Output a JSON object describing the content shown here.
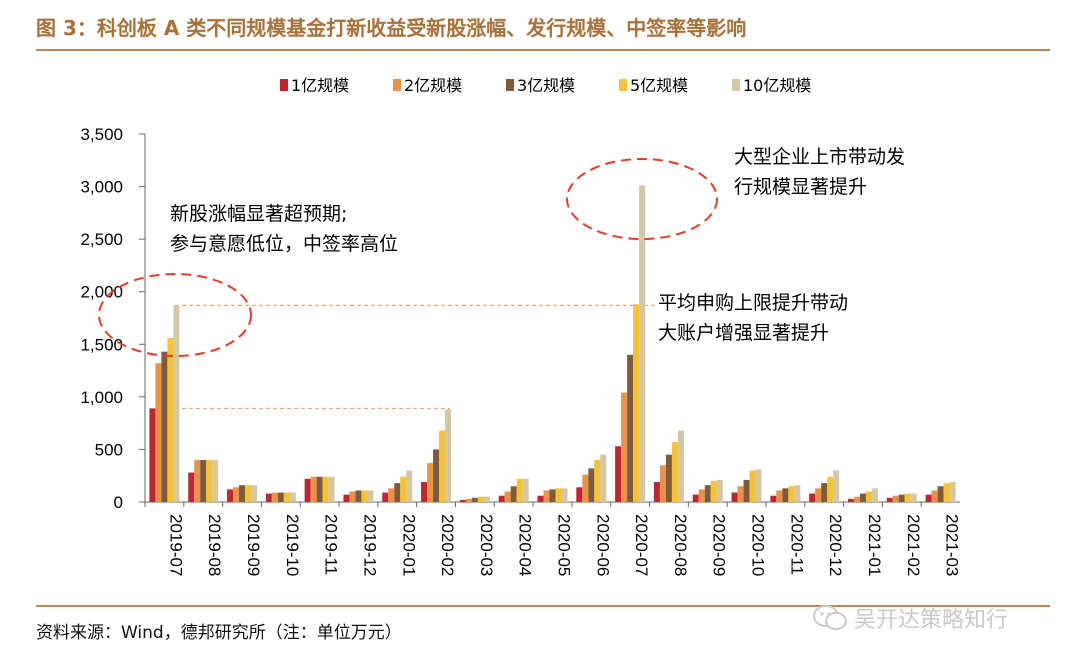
{
  "figure": {
    "title": "图 3：科创板 A 类不同规模基金打新收益受新股涨幅、发行规模、中签率等影响",
    "source": "资料来源：Wind，德邦研究所（注：单位万元）",
    "watermark": "吴开达策略知行",
    "watermark_icon": "wechat-icon"
  },
  "colors": {
    "title": "#a87137",
    "rule": "#b3875a",
    "axis": "#666666",
    "ellipse": "#e23c2c",
    "guide": "#e89a5a"
  },
  "chart_data": {
    "type": "bar",
    "categories": [
      "2019-07",
      "2019-08",
      "2019-09",
      "2019-10",
      "2019-11",
      "2019-12",
      "2020-01",
      "2020-02",
      "2020-03",
      "2020-04",
      "2020-05",
      "2020-06",
      "2020-07",
      "2020-08",
      "2020-09",
      "2020-10",
      "2020-11",
      "2020-12",
      "2021-01",
      "2021-02",
      "2021-03"
    ],
    "series": [
      {
        "name": "1亿规模",
        "color": "#c0262d",
        "values": [
          890,
          280,
          120,
          80,
          220,
          70,
          90,
          190,
          20,
          60,
          60,
          140,
          530,
          190,
          70,
          90,
          60,
          80,
          30,
          40,
          70
        ]
      },
      {
        "name": "2亿规模",
        "color": "#e8924a",
        "values": [
          1320,
          400,
          140,
          90,
          240,
          100,
          130,
          370,
          30,
          100,
          110,
          260,
          1040,
          350,
          120,
          150,
          110,
          130,
          50,
          60,
          110
        ]
      },
      {
        "name": "3亿规模",
        "color": "#7d5c3c",
        "values": [
          1430,
          400,
          160,
          90,
          240,
          110,
          180,
          500,
          40,
          150,
          120,
          320,
          1400,
          450,
          160,
          210,
          130,
          180,
          80,
          70,
          150
        ]
      },
      {
        "name": "5亿规模",
        "color": "#f6c332",
        "values": [
          1560,
          400,
          160,
          90,
          240,
          110,
          240,
          680,
          50,
          220,
          130,
          400,
          1880,
          570,
          200,
          300,
          150,
          240,
          100,
          80,
          180
        ]
      },
      {
        "name": "10亿规模",
        "color": "#d4c6a8",
        "values": [
          1870,
          400,
          160,
          90,
          240,
          110,
          300,
          880,
          50,
          220,
          130,
          450,
          3010,
          680,
          210,
          310,
          160,
          300,
          130,
          80,
          190
        ]
      }
    ],
    "yticks": [
      "0",
      "500",
      "1,000",
      "1,500",
      "2,000",
      "2,500",
      "3,000",
      "3,500"
    ],
    "ylim": [
      0,
      3500
    ],
    "legend_position": "top-center",
    "annotations": [
      {
        "lines": [
          "新股涨幅显著超预期;",
          "参与意愿低位，中签率高位"
        ]
      },
      {
        "lines": [
          "大型企业上市带动发",
          "行规模显著提升"
        ]
      },
      {
        "lines": [
          "平均申购上限提升带动",
          "大账户增强显著提升"
        ]
      }
    ],
    "reference_lines": [
      1870,
      890
    ]
  }
}
